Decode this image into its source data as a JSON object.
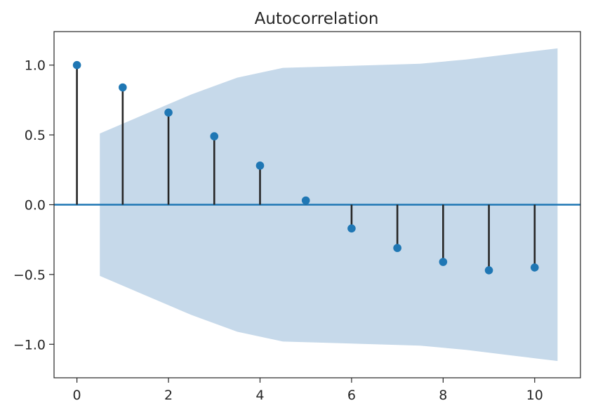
{
  "chart_data": {
    "type": "scatter",
    "subtype": "stem",
    "title": "Autocorrelation",
    "xlabel": "",
    "ylabel": "",
    "xlim": [
      -0.5,
      11
    ],
    "ylim": [
      -1.24,
      1.24
    ],
    "xticks": [
      0,
      2,
      4,
      6,
      8,
      10
    ],
    "xtick_labels": [
      "0",
      "2",
      "4",
      "6",
      "8",
      "10"
    ],
    "yticks": [
      1.0,
      0.5,
      0.0,
      -0.5,
      -1.0
    ],
    "ytick_labels": [
      "1.0",
      "0.5",
      "0.0",
      "−0.5",
      "−1.0"
    ],
    "grid": false,
    "legend": "none",
    "lags": [
      0,
      1,
      2,
      3,
      4,
      5,
      6,
      7,
      8,
      9,
      10
    ],
    "values": [
      1.0,
      0.84,
      0.66,
      0.49,
      0.28,
      0.03,
      -0.17,
      -0.31,
      -0.41,
      -0.47,
      -0.45
    ],
    "confidence_band": {
      "x": [
        0.5,
        1.5,
        2.5,
        3.5,
        4.5,
        5.5,
        6.5,
        7.5,
        8.5,
        9.5,
        10.5
      ],
      "upper": [
        0.51,
        0.65,
        0.79,
        0.91,
        0.98,
        0.99,
        1.0,
        1.01,
        1.04,
        1.08,
        1.12
      ],
      "lower": [
        -0.51,
        -0.65,
        -0.79,
        -0.91,
        -0.98,
        -0.99,
        -1.0,
        -1.01,
        -1.04,
        -1.08,
        -1.12
      ]
    },
    "colors": {
      "markers": "#1f77b4",
      "stems": "#262626",
      "baseline": "#1f77b4",
      "confidence_band": "#c6d9ea"
    }
  }
}
